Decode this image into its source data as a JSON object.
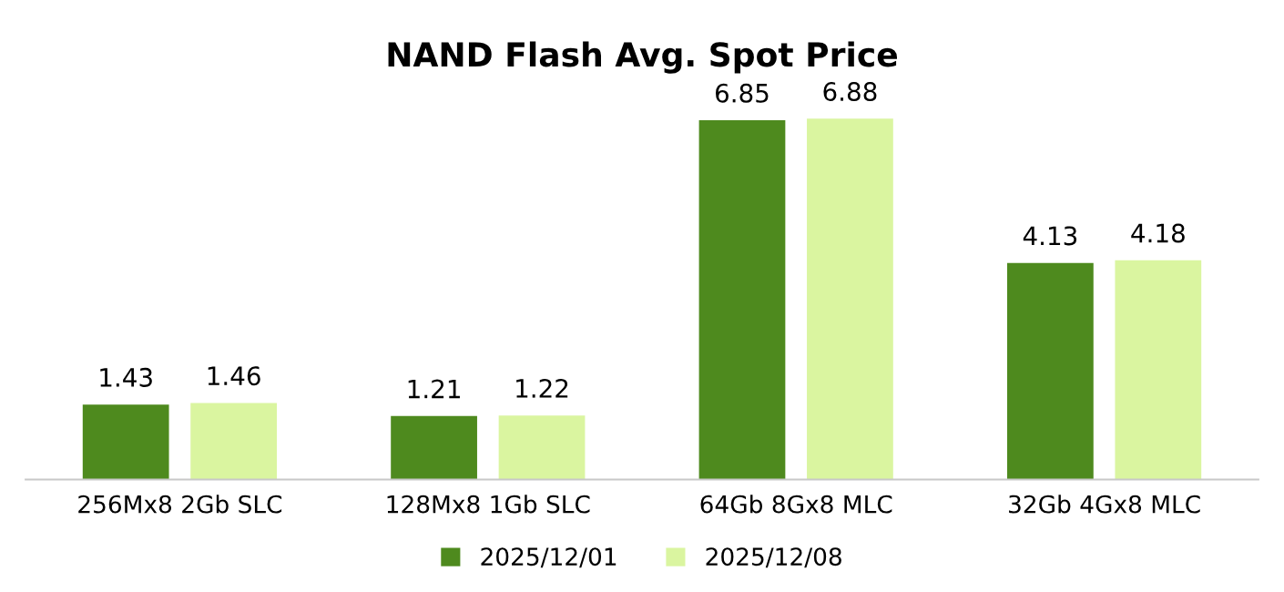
{
  "chart_data": {
    "type": "bar",
    "title": "NAND Flash Avg. Spot Price",
    "categories": [
      "256Mx8 2Gb SLC",
      "128Mx8 1Gb SLC",
      "64Gb 8Gx8 MLC",
      "32Gb 4Gx8 MLC"
    ],
    "series": [
      {
        "name": "2025/12/01",
        "color": "#4e8a1e",
        "values": [
          1.43,
          1.21,
          6.85,
          4.13
        ]
      },
      {
        "name": "2025/12/08",
        "color": "#daf5a0",
        "values": [
          1.46,
          1.22,
          6.88,
          4.18
        ]
      }
    ],
    "data_labels": true,
    "legend": "bottom",
    "grid": false,
    "tick_labels": "x"
  }
}
